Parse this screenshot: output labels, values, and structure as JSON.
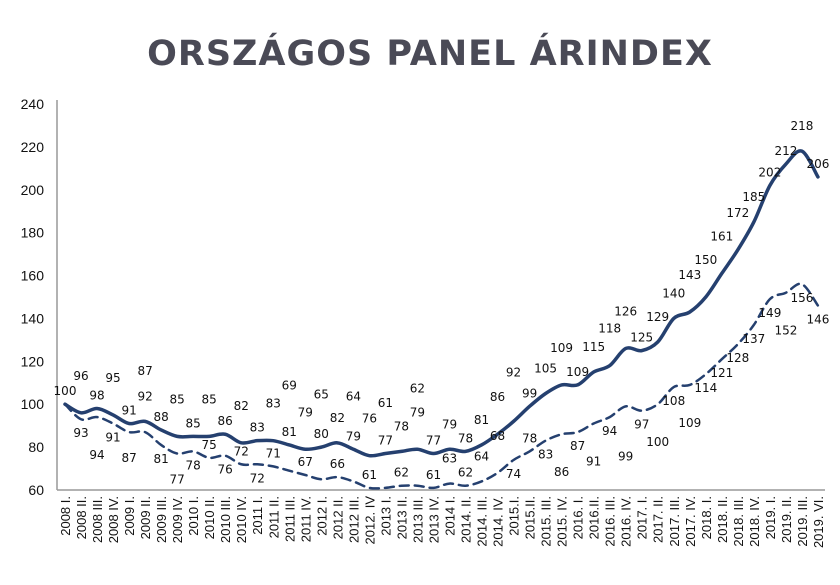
{
  "chart_data": {
    "type": "line",
    "title": "ORSZÁGOS PANEL ÁRINDEX",
    "xlabel": "",
    "ylabel": "",
    "ylim": [
      60,
      240
    ],
    "yticks": [
      "60",
      "80",
      "100",
      "120",
      "140",
      "160",
      "180",
      "200",
      "220",
      "240"
    ],
    "grid": false,
    "legend": "none",
    "categories": [
      "2008 I.",
      "2008 II.",
      "2008 III.",
      "2008 IV.",
      "2009 I.",
      "2009 II.",
      "2009 III.",
      "2009 IV.",
      "2010 I.",
      "2010 II.",
      "2010 III.",
      "2010 IV.",
      "2011 I.",
      "2011 II.",
      "2011 III.",
      "2011 IV.",
      "2012 I.",
      "2012 II.",
      "2012 III.",
      "2012. IV",
      "2013 I.",
      "2013 II.",
      "2013 III.",
      "2013 IV.",
      "2014 I.",
      "2014. II.",
      "2014. III.",
      "2014. IV.",
      "2015.I.",
      "2015.II.",
      "2015. III.",
      "2015. IV.",
      "2016. I.",
      "2016.II.",
      "2016. III.",
      "2016. IV.",
      "2017. I.",
      "2017. II.",
      "2017. III.",
      "2017. IV.",
      "2018. I.",
      "2018. II.",
      "2018. III.",
      "2018. IV.",
      "2019. I.",
      "2019. II.",
      "2019. III.",
      "2019. VI."
    ],
    "series": [
      {
        "style": "solid",
        "color": "#25406f",
        "values": [
          100,
          96,
          98,
          95,
          91,
          92,
          88,
          85,
          85,
          85,
          86,
          82,
          83,
          83,
          81,
          79,
          80,
          82,
          79,
          76,
          77,
          78,
          79,
          77,
          79,
          78,
          81,
          86,
          92,
          99,
          105,
          109,
          109,
          115,
          118,
          126,
          125,
          129,
          140,
          143,
          150,
          161,
          172,
          185,
          202,
          212,
          218,
          206
        ]
      },
      {
        "style": "dashed",
        "color": "#25406f",
        "values": [
          100,
          93,
          94,
          91,
          87,
          87,
          81,
          77,
          78,
          75,
          76,
          72,
          72,
          71,
          69,
          67,
          65,
          66,
          64,
          61,
          61,
          62,
          62,
          61,
          63,
          62,
          64,
          68,
          74,
          78,
          83,
          86,
          87,
          91,
          94,
          99,
          97,
          100,
          108,
          109,
          114,
          121,
          128,
          137,
          149,
          152,
          156,
          146
        ]
      }
    ]
  }
}
